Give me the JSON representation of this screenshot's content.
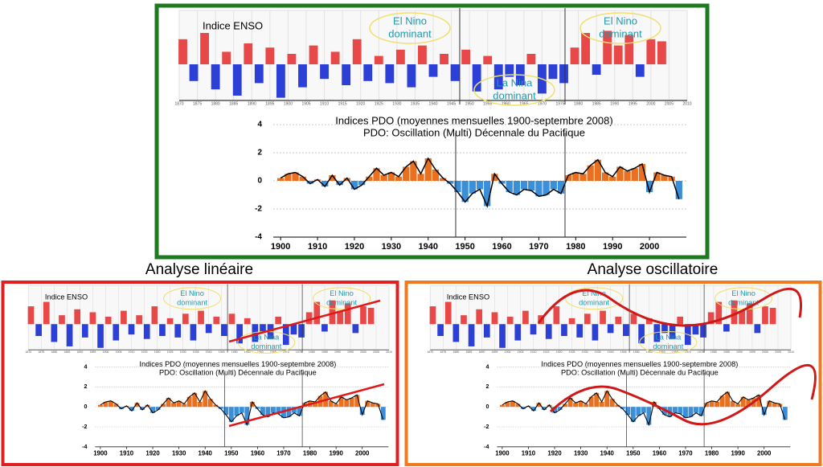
{
  "chart_data": [
    {
      "type": "bar",
      "title": "Indice ENSO",
      "x": [
        1871,
        1874,
        1877,
        1880,
        1883,
        1886,
        1889,
        1892,
        1895,
        1898,
        1901,
        1904,
        1907,
        1910,
        1913,
        1916,
        1919,
        1922,
        1925,
        1928,
        1931,
        1934,
        1937,
        1940,
        1943,
        1946,
        1949,
        1952,
        1955,
        1958,
        1961,
        1964,
        1967,
        1970,
        1973,
        1976,
        1979,
        1982,
        1985,
        1988,
        1991,
        1994,
        1997,
        2000,
        2003
      ],
      "values": [
        1.2,
        -0.8,
        1.5,
        -1.2,
        0.6,
        -1.5,
        1.0,
        -0.9,
        0.8,
        -1.6,
        0.5,
        -1.1,
        0.9,
        -0.7,
        0.6,
        -1.0,
        1.2,
        -0.8,
        0.4,
        -0.9,
        0.7,
        -1.1,
        0.9,
        -0.6,
        0.5,
        -0.8,
        0.7,
        -1.3,
        0.4,
        -1.2,
        -0.6,
        -1.0,
        0.5,
        -1.4,
        -0.7,
        -0.9,
        0.8,
        1.5,
        -0.5,
        1.6,
        0.9,
        1.4,
        -0.6,
        1.2,
        1.1
      ],
      "xlim": [
        1870,
        2010
      ],
      "xticks": [
        1870,
        1875,
        1880,
        1885,
        1890,
        1895,
        1900,
        1905,
        1910,
        1915,
        1920,
        1925,
        1930,
        1935,
        1940,
        1945,
        1950,
        1955,
        1960,
        1965,
        1970,
        1975,
        1980,
        1985,
        1990,
        1995,
        2000,
        2005,
        2010
      ],
      "colors": {
        "positive": "#e84848",
        "negative": "#2c3fd6"
      },
      "annotations": {
        "el_nino": [
          "El Nino",
          "dominant"
        ],
        "la_nina": [
          "La Nina",
          "dominant"
        ]
      }
    },
    {
      "type": "bar",
      "title": "Indices PDO (moyennes mensuelles 1900-septembre 2008)",
      "subtitle": "PDO: Oscillation (Multi) Décennale du Pacifique",
      "x": [
        1900,
        1902,
        1904,
        1906,
        1908,
        1910,
        1912,
        1914,
        1916,
        1918,
        1920,
        1922,
        1924,
        1926,
        1928,
        1930,
        1932,
        1934,
        1936,
        1938,
        1940,
        1942,
        1944,
        1946,
        1948,
        1950,
        1952,
        1954,
        1956,
        1958,
        1960,
        1962,
        1964,
        1966,
        1968,
        1970,
        1972,
        1974,
        1976,
        1978,
        1980,
        1982,
        1984,
        1986,
        1988,
        1990,
        1992,
        1994,
        1996,
        1998,
        2000,
        2002,
        2004,
        2006,
        2008
      ],
      "values": [
        0.2,
        0.5,
        0.6,
        0.3,
        -0.2,
        0.1,
        -0.4,
        0.4,
        -0.3,
        0.2,
        -0.6,
        -0.3,
        0.3,
        0.9,
        0.4,
        0.6,
        0.3,
        1.0,
        1.4,
        0.5,
        1.6,
        0.8,
        0.2,
        -0.2,
        -0.8,
        -1.5,
        -0.9,
        -0.6,
        -1.8,
        0.5,
        -0.2,
        -0.8,
        -1.0,
        -0.6,
        -0.7,
        -1.1,
        -1.0,
        -0.6,
        -0.9,
        0.4,
        0.6,
        0.5,
        1.1,
        1.5,
        0.6,
        0.3,
        1.0,
        0.7,
        0.9,
        1.2,
        -0.8,
        0.6,
        0.4,
        0.3,
        -1.3
      ],
      "xlim": [
        1898,
        2010
      ],
      "ylim": [
        -4,
        4
      ],
      "yticks": [
        -4,
        -2,
        0,
        2,
        4
      ],
      "xticks": [
        1900,
        1910,
        1920,
        1930,
        1940,
        1950,
        1960,
        1970,
        1980,
        1990,
        2000
      ],
      "colors": {
        "positive": "#e8701e",
        "negative": "#3a8fd8",
        "line": "#000000"
      }
    }
  ],
  "captions": [
    "Analyse linéaire",
    "Analyse oscillatoire"
  ]
}
